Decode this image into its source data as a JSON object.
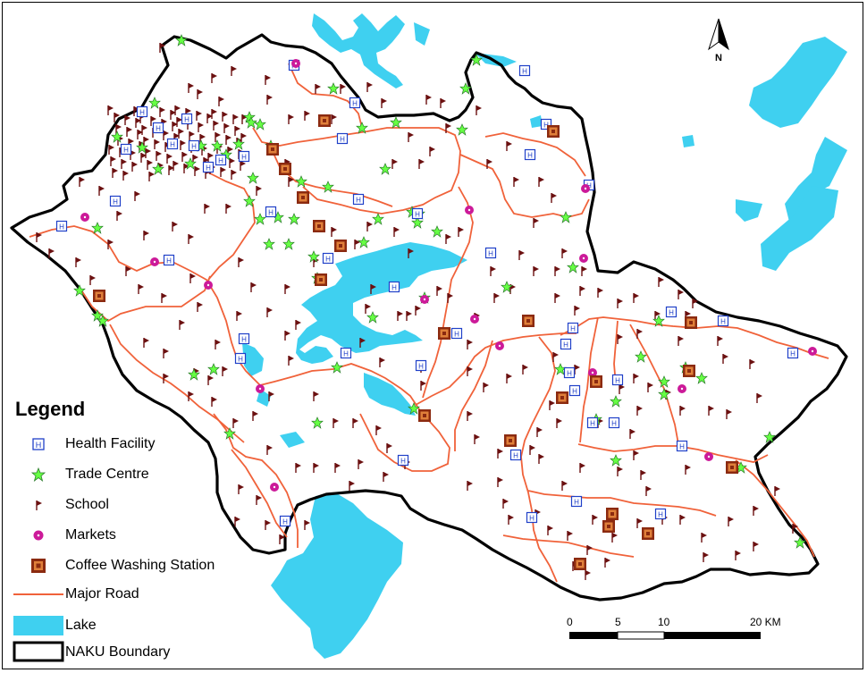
{
  "colors": {
    "lake": "#3fd0f0",
    "road": "#f0623a",
    "boundary": "#000000",
    "health": "#2040c8",
    "trade": "#2ea82e",
    "trade_fill": "#66ff44",
    "school": "#6b1010",
    "market": "#cc1a99",
    "coffee": "#8b2a10",
    "coffee_fill": "#e0803a"
  },
  "legend": {
    "title": "Legend",
    "items": [
      {
        "label": "Health Facility",
        "symbol": "health-facility-icon"
      },
      {
        "label": "Trade Centre",
        "symbol": "trade-centre-star-icon"
      },
      {
        "label": "School",
        "symbol": "school-flag-icon"
      },
      {
        "label": "Markets",
        "symbol": "market-dot-icon"
      },
      {
        "label": "Coffee Washing Station",
        "symbol": "coffee-station-icon"
      },
      {
        "label": "Major Road",
        "symbol": "road-line-icon"
      },
      {
        "label": "Lake",
        "symbol": "lake-swatch-icon"
      },
      {
        "label": "NAKU Boundary",
        "symbol": "boundary-swatch-icon"
      }
    ]
  },
  "scale_bar": {
    "labels": [
      "0",
      "5",
      "10",
      "20 KM"
    ]
  },
  "north_arrow": {
    "label": "N"
  }
}
